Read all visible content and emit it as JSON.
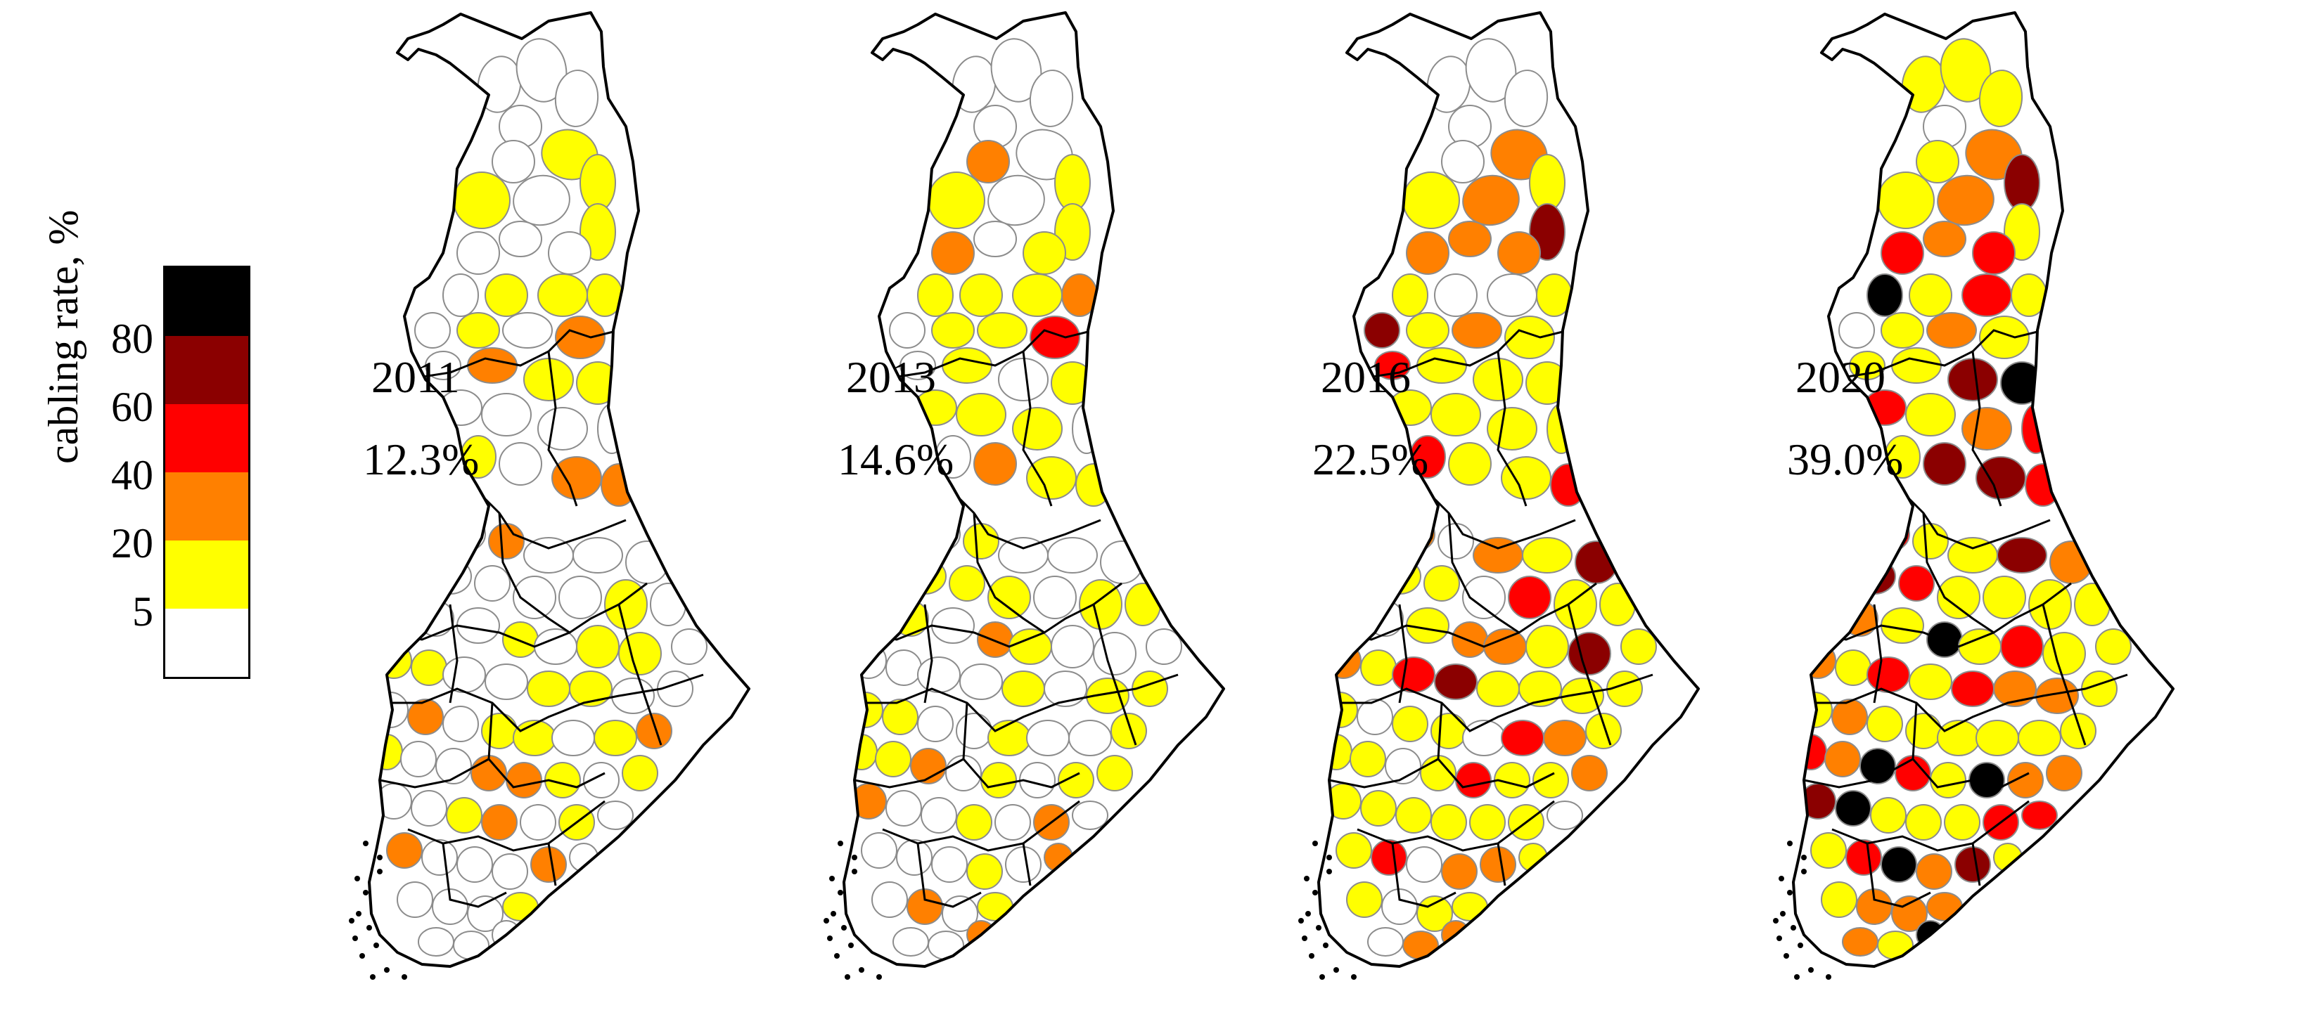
{
  "legend": {
    "title": "cabling rate, %",
    "classes": [
      {
        "range": "80-100",
        "color": "#000000"
      },
      {
        "range": "60-80",
        "color": "#8b0000"
      },
      {
        "range": "40-60",
        "color": "#ff0000"
      },
      {
        "range": "20-40",
        "color": "#ff8000"
      },
      {
        "range": "5-20",
        "color": "#ffff00"
      },
      {
        "range": "0-5",
        "color": "#ffffff"
      }
    ],
    "ticks": [
      "80",
      "60",
      "40",
      "20",
      "5"
    ]
  },
  "panels": [
    {
      "year": "2011",
      "rate": "12.3%"
    },
    {
      "year": "2013",
      "rate": "14.6%"
    },
    {
      "year": "2016",
      "rate": "22.5%"
    },
    {
      "year": "2020",
      "rate": "39.0%"
    }
  ],
  "colors": {
    "outline": "#000000",
    "municipality_border": "#8c8c8c",
    "background": "#ffffff"
  }
}
